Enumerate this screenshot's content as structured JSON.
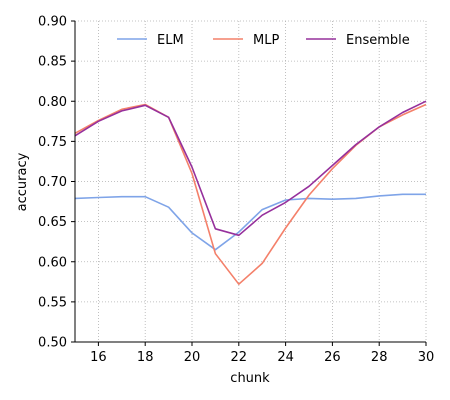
{
  "chart_data": {
    "type": "line",
    "xlabel": "chunk",
    "ylabel": "accuracy",
    "xlim": [
      15,
      30
    ],
    "ylim": [
      0.5,
      0.9
    ],
    "xticks": [
      16,
      18,
      20,
      22,
      24,
      26,
      28,
      30
    ],
    "yticks": [
      "0.50",
      "0.55",
      "0.60",
      "0.65",
      "0.70",
      "0.75",
      "0.80",
      "0.85",
      "0.90"
    ],
    "grid": true,
    "legend_position": "top",
    "x": [
      15,
      16,
      17,
      18,
      19,
      20,
      21,
      22,
      23,
      24,
      25,
      26,
      27,
      28,
      29,
      30
    ],
    "series": [
      {
        "name": "ELM",
        "color": "#7fa4e8",
        "values": [
          0.679,
          0.68,
          0.681,
          0.681,
          0.668,
          0.636,
          0.615,
          0.637,
          0.665,
          0.677,
          0.679,
          0.678,
          0.679,
          0.682,
          0.684,
          0.684
        ]
      },
      {
        "name": "MLP",
        "color": "#f4806a",
        "values": [
          0.76,
          0.776,
          0.79,
          0.796,
          0.78,
          0.71,
          0.61,
          0.572,
          0.598,
          0.642,
          0.683,
          0.716,
          0.745,
          0.768,
          0.783,
          0.796
        ]
      },
      {
        "name": "Ensemble",
        "color": "#96309c",
        "values": [
          0.757,
          0.775,
          0.788,
          0.795,
          0.78,
          0.718,
          0.641,
          0.633,
          0.658,
          0.674,
          0.694,
          0.72,
          0.746,
          0.768,
          0.786,
          0.8
        ]
      }
    ]
  }
}
